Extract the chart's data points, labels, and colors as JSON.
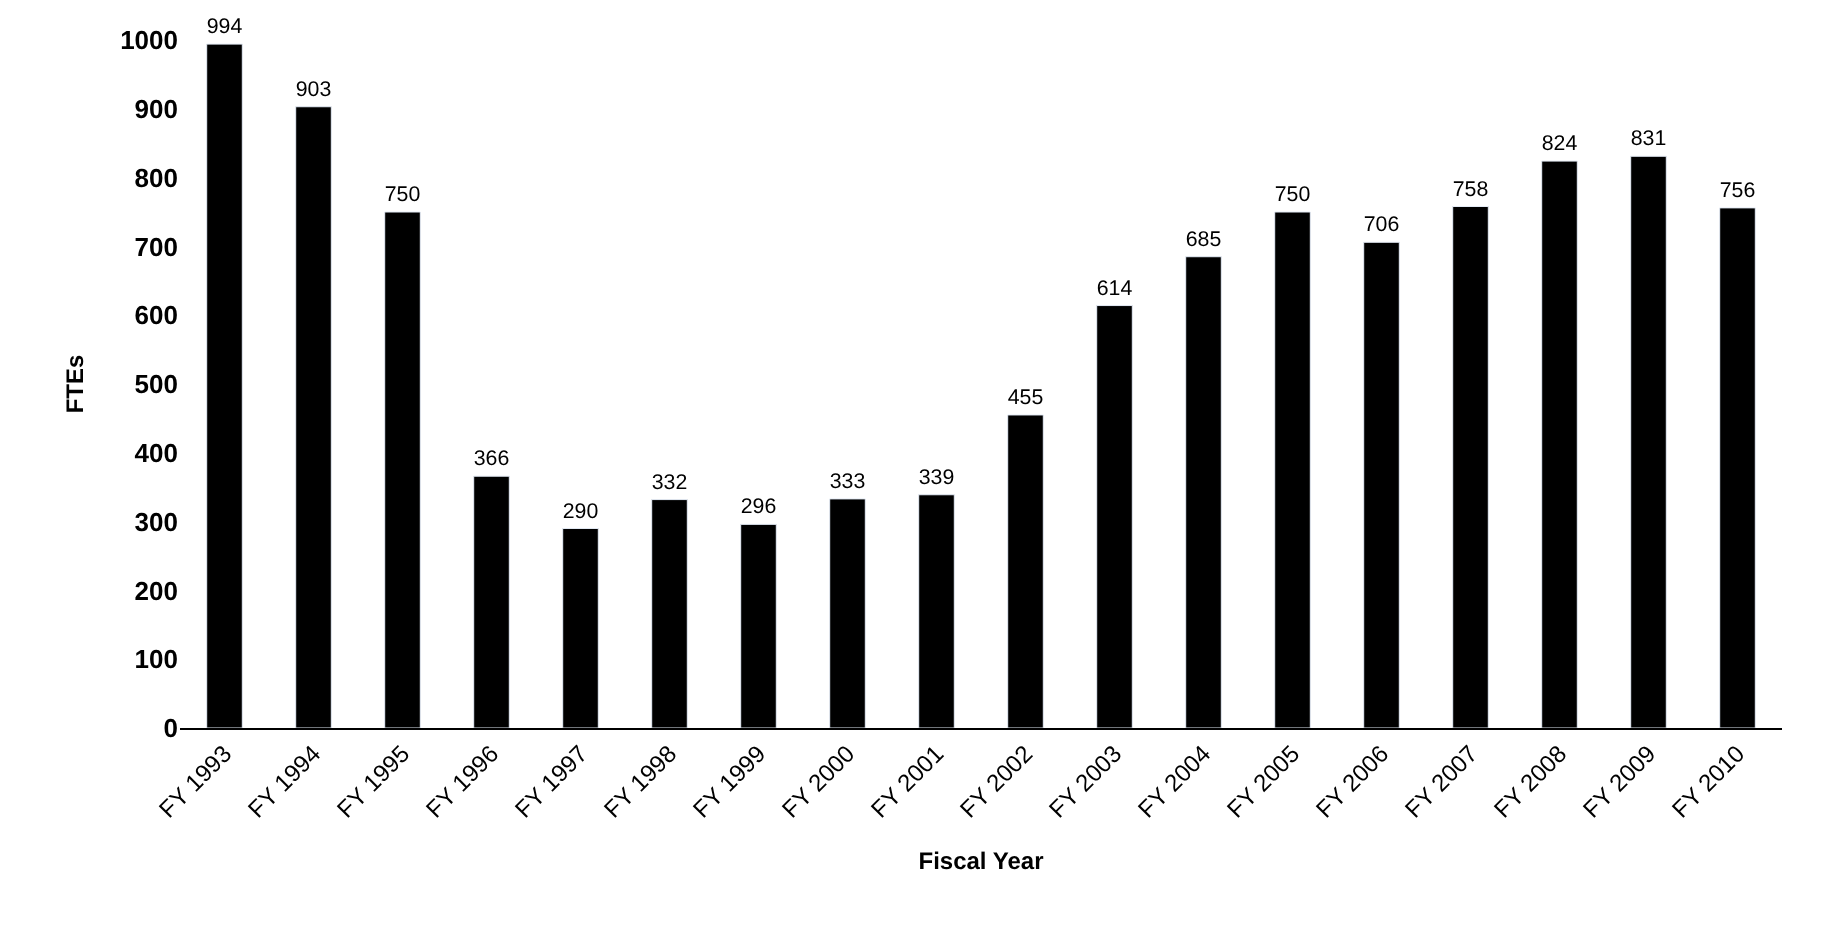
{
  "chart_data": {
    "type": "bar",
    "xlabel": "Fiscal Year",
    "ylabel": "FTEs",
    "categories": [
      "FY 1993",
      "FY 1994",
      "FY 1995",
      "FY 1996",
      "FY 1997",
      "FY 1998",
      "FY 1999",
      "FY 2000",
      "FY 2001",
      "FY 2002",
      "FY 2003",
      "FY 2004",
      "FY 2005",
      "FY 2006",
      "FY 2007",
      "FY 2008",
      "FY 2009",
      "FY 2010"
    ],
    "values": [
      994,
      903,
      750,
      366,
      290,
      332,
      296,
      333,
      339,
      455,
      614,
      685,
      750,
      706,
      758,
      824,
      831,
      756
    ],
    "color": "#000000",
    "data_labels": true,
    "grid": false,
    "legend": false,
    "ylim": [
      0,
      1000
    ],
    "yticks": [
      0,
      100,
      200,
      300,
      400,
      500,
      600,
      700,
      800,
      900,
      1000
    ]
  }
}
